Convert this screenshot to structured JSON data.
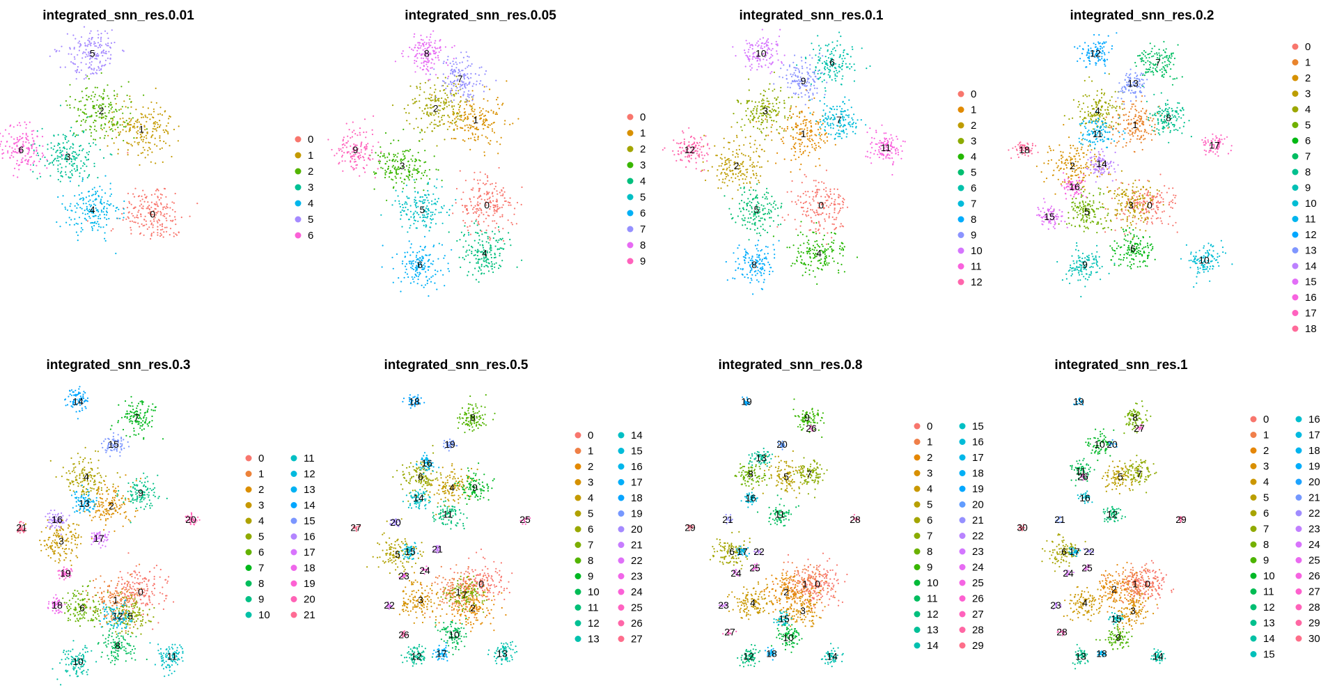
{
  "chart_data": {
    "type": "scatter",
    "panels": [
      {
        "title": "integrated_snn_res.0.01",
        "clusters": [
          "0",
          "1",
          "2",
          "3",
          "4",
          "5",
          "6"
        ],
        "centroid_labels": [
          {
            "label": "0",
            "x": 0.56,
            "y": 0.25
          },
          {
            "label": "1",
            "x": 0.51,
            "y": 0.62
          },
          {
            "label": "2",
            "x": 0.33,
            "y": 0.7
          },
          {
            "label": "3",
            "x": 0.18,
            "y": 0.5
          },
          {
            "label": "4",
            "x": 0.29,
            "y": 0.27
          },
          {
            "label": "5",
            "x": 0.29,
            "y": 0.95
          },
          {
            "label": "6",
            "x": -0.03,
            "y": 0.53
          }
        ]
      },
      {
        "title": "integrated_snn_res.0.05",
        "clusters": [
          "0",
          "1",
          "2",
          "3",
          "4",
          "5",
          "6",
          "7",
          "8",
          "9"
        ],
        "centroid_labels": [
          {
            "label": "0",
            "x": 0.56,
            "y": 0.29
          },
          {
            "label": "1",
            "x": 0.51,
            "y": 0.66
          },
          {
            "label": "2",
            "x": 0.33,
            "y": 0.71
          },
          {
            "label": "3",
            "x": 0.18,
            "y": 0.46
          },
          {
            "label": "4",
            "x": 0.55,
            "y": 0.08
          },
          {
            "label": "5",
            "x": 0.27,
            "y": 0.27
          },
          {
            "label": "6",
            "x": 0.26,
            "y": 0.03
          },
          {
            "label": "7",
            "x": 0.44,
            "y": 0.84
          },
          {
            "label": "8",
            "x": 0.29,
            "y": 0.95
          },
          {
            "label": "9",
            "x": -0.03,
            "y": 0.53
          }
        ]
      },
      {
        "title": "integrated_snn_res.0.1",
        "clusters": [
          "0",
          "1",
          "2",
          "3",
          "4",
          "5",
          "6",
          "7",
          "8",
          "9",
          "10",
          "11",
          "12"
        ],
        "centroid_labels": [
          {
            "label": "0",
            "x": 0.56,
            "y": 0.29
          },
          {
            "label": "1",
            "x": 0.48,
            "y": 0.6
          },
          {
            "label": "2",
            "x": 0.18,
            "y": 0.46
          },
          {
            "label": "3",
            "x": 0.31,
            "y": 0.7
          },
          {
            "label": "4",
            "x": 0.55,
            "y": 0.08
          },
          {
            "label": "5",
            "x": 0.27,
            "y": 0.27
          },
          {
            "label": "6",
            "x": 0.61,
            "y": 0.91
          },
          {
            "label": "7",
            "x": 0.64,
            "y": 0.66
          },
          {
            "label": "8",
            "x": 0.26,
            "y": 0.03
          },
          {
            "label": "9",
            "x": 0.48,
            "y": 0.83
          },
          {
            "label": "10",
            "x": 0.29,
            "y": 0.95
          },
          {
            "label": "11",
            "x": 0.85,
            "y": 0.54
          },
          {
            "label": "12",
            "x": -0.03,
            "y": 0.53
          }
        ]
      },
      {
        "title": "integrated_snn_res.0.2",
        "clusters": [
          "0",
          "1",
          "2",
          "3",
          "4",
          "5",
          "6",
          "7",
          "8",
          "9",
          "10",
          "11",
          "12",
          "13",
          "14",
          "15",
          "16",
          "17",
          "18"
        ],
        "centroid_labels": [
          {
            "label": "0",
            "x": 0.57,
            "y": 0.29
          },
          {
            "label": "1",
            "x": 0.5,
            "y": 0.64
          },
          {
            "label": "2",
            "x": 0.2,
            "y": 0.46
          },
          {
            "label": "3",
            "x": 0.48,
            "y": 0.29
          },
          {
            "label": "4",
            "x": 0.32,
            "y": 0.7
          },
          {
            "label": "5",
            "x": 0.27,
            "y": 0.26
          },
          {
            "label": "6",
            "x": 0.49,
            "y": 0.1
          },
          {
            "label": "7",
            "x": 0.61,
            "y": 0.91
          },
          {
            "label": "8",
            "x": 0.66,
            "y": 0.67
          },
          {
            "label": "9",
            "x": 0.26,
            "y": 0.03
          },
          {
            "label": "10",
            "x": 0.83,
            "y": 0.05
          },
          {
            "label": "11",
            "x": 0.32,
            "y": 0.6
          },
          {
            "label": "12",
            "x": 0.31,
            "y": 0.95
          },
          {
            "label": "13",
            "x": 0.49,
            "y": 0.82
          },
          {
            "label": "14",
            "x": 0.34,
            "y": 0.47
          },
          {
            "label": "15",
            "x": 0.09,
            "y": 0.24
          },
          {
            "label": "16",
            "x": 0.21,
            "y": 0.37
          },
          {
            "label": "17",
            "x": 0.88,
            "y": 0.55
          },
          {
            "label": "18",
            "x": -0.03,
            "y": 0.53
          }
        ]
      },
      {
        "title": "integrated_snn_res.0.3",
        "clusters": [
          "0",
          "1",
          "2",
          "3",
          "4",
          "5",
          "6",
          "7",
          "8",
          "9",
          "10",
          "11",
          "12",
          "13",
          "14",
          "15",
          "16",
          "17",
          "18",
          "19",
          "20",
          "21"
        ],
        "centroid_labels": [
          {
            "label": "0",
            "x": 0.54,
            "y": 0.26
          },
          {
            "label": "1",
            "x": 0.42,
            "y": 0.23
          },
          {
            "label": "2",
            "x": 0.4,
            "y": 0.58
          },
          {
            "label": "3",
            "x": 0.16,
            "y": 0.45
          },
          {
            "label": "4",
            "x": 0.28,
            "y": 0.69
          },
          {
            "label": "5",
            "x": 0.49,
            "y": 0.17
          },
          {
            "label": "6",
            "x": 0.26,
            "y": 0.2
          },
          {
            "label": "7",
            "x": 0.52,
            "y": 0.91
          },
          {
            "label": "8",
            "x": 0.43,
            "y": 0.06
          },
          {
            "label": "9",
            "x": 0.54,
            "y": 0.63
          },
          {
            "label": "10",
            "x": 0.24,
            "y": 0.0
          },
          {
            "label": "11",
            "x": 0.69,
            "y": 0.02
          },
          {
            "label": "12",
            "x": 0.43,
            "y": 0.17
          },
          {
            "label": "13",
            "x": 0.27,
            "y": 0.59
          },
          {
            "label": "14",
            "x": 0.24,
            "y": 0.97
          },
          {
            "label": "15",
            "x": 0.41,
            "y": 0.81
          },
          {
            "label": "16",
            "x": 0.14,
            "y": 0.53
          },
          {
            "label": "17",
            "x": 0.34,
            "y": 0.46
          },
          {
            "label": "18",
            "x": 0.14,
            "y": 0.21
          },
          {
            "label": "19",
            "x": 0.18,
            "y": 0.33
          },
          {
            "label": "20",
            "x": 0.78,
            "y": 0.53
          },
          {
            "label": "21",
            "x": -0.03,
            "y": 0.5
          }
        ]
      },
      {
        "title": "integrated_snn_res.0.5",
        "clusters": [
          "0",
          "1",
          "2",
          "3",
          "4",
          "5",
          "6",
          "7",
          "8",
          "9",
          "10",
          "11",
          "12",
          "13",
          "14",
          "15",
          "16",
          "17",
          "18",
          "19",
          "20",
          "21",
          "22",
          "23",
          "24",
          "25",
          "26",
          "27"
        ],
        "centroid_labels": [
          {
            "label": "0",
            "x": 0.57,
            "y": 0.29
          },
          {
            "label": "1",
            "x": 0.46,
            "y": 0.26
          },
          {
            "label": "2",
            "x": 0.53,
            "y": 0.2
          },
          {
            "label": "3",
            "x": 0.28,
            "y": 0.23
          },
          {
            "label": "4",
            "x": 0.43,
            "y": 0.65
          },
          {
            "label": "5",
            "x": 0.17,
            "y": 0.4
          },
          {
            "label": "6",
            "x": 0.28,
            "y": 0.69
          },
          {
            "label": "7",
            "x": 0.49,
            "y": 0.25
          },
          {
            "label": "8",
            "x": 0.53,
            "y": 0.91
          },
          {
            "label": "9",
            "x": 0.54,
            "y": 0.65
          },
          {
            "label": "10",
            "x": 0.44,
            "y": 0.1
          },
          {
            "label": "11",
            "x": 0.41,
            "y": 0.55
          },
          {
            "label": "12",
            "x": 0.26,
            "y": 0.02
          },
          {
            "label": "13",
            "x": 0.67,
            "y": 0.03
          },
          {
            "label": "14",
            "x": 0.27,
            "y": 0.61
          },
          {
            "label": "15",
            "x": 0.23,
            "y": 0.41
          },
          {
            "label": "16",
            "x": 0.31,
            "y": 0.74
          },
          {
            "label": "17",
            "x": 0.38,
            "y": 0.03
          },
          {
            "label": "18",
            "x": 0.25,
            "y": 0.97
          },
          {
            "label": "19",
            "x": 0.42,
            "y": 0.81
          },
          {
            "label": "20",
            "x": 0.16,
            "y": 0.52
          },
          {
            "label": "21",
            "x": 0.36,
            "y": 0.42
          },
          {
            "label": "22",
            "x": 0.13,
            "y": 0.21
          },
          {
            "label": "23",
            "x": 0.2,
            "y": 0.32
          },
          {
            "label": "24",
            "x": 0.3,
            "y": 0.34
          },
          {
            "label": "25",
            "x": 0.78,
            "y": 0.53
          },
          {
            "label": "26",
            "x": 0.2,
            "y": 0.1
          },
          {
            "label": "27",
            "x": -0.03,
            "y": 0.5
          }
        ]
      },
      {
        "title": "integrated_snn_res.0.8",
        "clusters": [
          "0",
          "1",
          "2",
          "3",
          "4",
          "5",
          "6",
          "7",
          "8",
          "9",
          "10",
          "11",
          "12",
          "13",
          "14",
          "15",
          "16",
          "17",
          "18",
          "19",
          "20",
          "21",
          "22",
          "23",
          "24",
          "25",
          "26",
          "27",
          "28",
          "29"
        ],
        "centroid_labels": [
          {
            "label": "0",
            "x": 0.58,
            "y": 0.29
          },
          {
            "label": "1",
            "x": 0.52,
            "y": 0.29
          },
          {
            "label": "2",
            "x": 0.43,
            "y": 0.26
          },
          {
            "label": "3",
            "x": 0.51,
            "y": 0.19
          },
          {
            "label": "4",
            "x": 0.27,
            "y": 0.22
          },
          {
            "label": "5",
            "x": 0.43,
            "y": 0.69
          },
          {
            "label": "6",
            "x": 0.17,
            "y": 0.41
          },
          {
            "label": "7",
            "x": 0.54,
            "y": 0.7
          },
          {
            "label": "8",
            "x": 0.26,
            "y": 0.7
          },
          {
            "label": "9",
            "x": 0.53,
            "y": 0.91
          },
          {
            "label": "10",
            "x": 0.44,
            "y": 0.09
          },
          {
            "label": "11",
            "x": 0.4,
            "y": 0.55
          },
          {
            "label": "12",
            "x": 0.25,
            "y": 0.02
          },
          {
            "label": "13",
            "x": 0.31,
            "y": 0.76
          },
          {
            "label": "14",
            "x": 0.65,
            "y": 0.02
          },
          {
            "label": "15",
            "x": 0.42,
            "y": 0.16
          },
          {
            "label": "16",
            "x": 0.26,
            "y": 0.61
          },
          {
            "label": "17",
            "x": 0.22,
            "y": 0.41
          },
          {
            "label": "18",
            "x": 0.36,
            "y": 0.03
          },
          {
            "label": "19",
            "x": 0.24,
            "y": 0.97
          },
          {
            "label": "20",
            "x": 0.41,
            "y": 0.81
          },
          {
            "label": "21",
            "x": 0.15,
            "y": 0.53
          },
          {
            "label": "22",
            "x": 0.3,
            "y": 0.41
          },
          {
            "label": "23",
            "x": 0.13,
            "y": 0.21
          },
          {
            "label": "24",
            "x": 0.19,
            "y": 0.33
          },
          {
            "label": "25",
            "x": 0.28,
            "y": 0.35
          },
          {
            "label": "26",
            "x": 0.55,
            "y": 0.87
          },
          {
            "label": "27",
            "x": 0.16,
            "y": 0.11
          },
          {
            "label": "28",
            "x": 0.76,
            "y": 0.53
          },
          {
            "label": "29",
            "x": -0.03,
            "y": 0.5
          }
        ]
      },
      {
        "title": "integrated_snn_res.1",
        "clusters": [
          "0",
          "1",
          "2",
          "3",
          "4",
          "5",
          "6",
          "7",
          "8",
          "9",
          "10",
          "11",
          "12",
          "13",
          "14",
          "15",
          "16",
          "17",
          "18",
          "19",
          "20",
          "21",
          "22",
          "23",
          "24",
          "25",
          "26",
          "27",
          "28",
          "29",
          "30"
        ],
        "centroid_labels": [
          {
            "label": "0",
            "x": 0.56,
            "y": 0.29
          },
          {
            "label": "1",
            "x": 0.5,
            "y": 0.29
          },
          {
            "label": "2",
            "x": 0.4,
            "y": 0.27
          },
          {
            "label": "3",
            "x": 0.49,
            "y": 0.19
          },
          {
            "label": "4",
            "x": 0.26,
            "y": 0.22
          },
          {
            "label": "5",
            "x": 0.43,
            "y": 0.69
          },
          {
            "label": "6",
            "x": 0.16,
            "y": 0.41
          },
          {
            "label": "7",
            "x": 0.52,
            "y": 0.7
          },
          {
            "label": "8",
            "x": 0.5,
            "y": 0.91
          },
          {
            "label": "9",
            "x": 0.42,
            "y": 0.09
          },
          {
            "label": "10",
            "x": 0.33,
            "y": 0.81
          },
          {
            "label": "11",
            "x": 0.24,
            "y": 0.71
          },
          {
            "label": "12",
            "x": 0.39,
            "y": 0.55
          },
          {
            "label": "13",
            "x": 0.24,
            "y": 0.02
          },
          {
            "label": "14",
            "x": 0.61,
            "y": 0.02
          },
          {
            "label": "15",
            "x": 0.41,
            "y": 0.16
          },
          {
            "label": "16",
            "x": 0.26,
            "y": 0.61
          },
          {
            "label": "17",
            "x": 0.21,
            "y": 0.41
          },
          {
            "label": "18",
            "x": 0.34,
            "y": 0.03
          },
          {
            "label": "19",
            "x": 0.23,
            "y": 0.97
          },
          {
            "label": "20",
            "x": 0.39,
            "y": 0.81
          },
          {
            "label": "21",
            "x": 0.14,
            "y": 0.53
          },
          {
            "label": "22",
            "x": 0.28,
            "y": 0.41
          },
          {
            "label": "23",
            "x": 0.12,
            "y": 0.21
          },
          {
            "label": "24",
            "x": 0.18,
            "y": 0.33
          },
          {
            "label": "25",
            "x": 0.27,
            "y": 0.35
          },
          {
            "label": "26",
            "x": 0.25,
            "y": 0.69
          },
          {
            "label": "27",
            "x": 0.52,
            "y": 0.87
          },
          {
            "label": "28",
            "x": 0.15,
            "y": 0.11
          },
          {
            "label": "29",
            "x": 0.72,
            "y": 0.53
          },
          {
            "label": "30",
            "x": -0.04,
            "y": 0.5
          }
        ]
      }
    ],
    "grid": false,
    "legend_placement": "right"
  }
}
